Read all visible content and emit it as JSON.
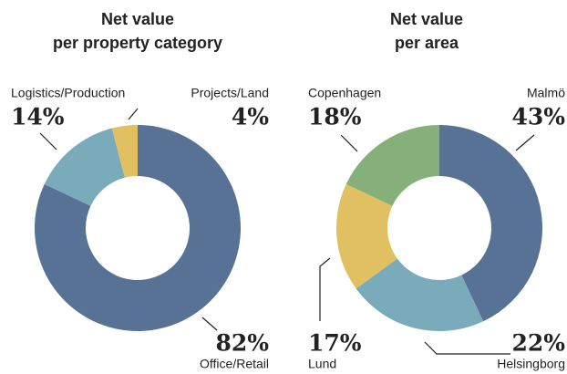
{
  "chart_data": [
    {
      "type": "donut",
      "title": [
        "Net value",
        "per property category"
      ],
      "categories": [
        "Office/Retail",
        "Logistics/Production",
        "Projects/Land"
      ],
      "values": [
        82,
        14,
        4
      ],
      "value_labels": [
        "82%",
        "14%",
        "4%"
      ],
      "colors": [
        "#577294",
        "#7aabbb",
        "#e0c060"
      ]
    },
    {
      "type": "donut",
      "title": [
        "Net value",
        "per area"
      ],
      "categories": [
        "Malmö",
        "Helsingborg",
        "Lund",
        "Copenhagen"
      ],
      "values": [
        43,
        22,
        17,
        18
      ],
      "value_labels": [
        "43%",
        "22%",
        "17%",
        "18%"
      ],
      "colors": [
        "#577294",
        "#7aabbb",
        "#e0c060",
        "#86b07a"
      ]
    }
  ]
}
